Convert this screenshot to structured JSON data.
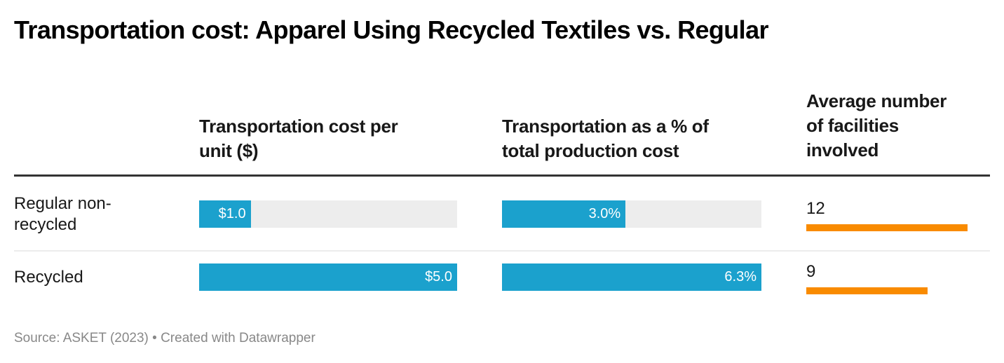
{
  "title": "Transportation cost: Apparel Using Recycled Textiles vs. Regular",
  "footer": "Source: ASKET (2023) • Created with Datawrapper",
  "colors": {
    "bar": "#1ba1cd",
    "track": "#ededed",
    "orange": "#f98b00"
  },
  "columns": [
    {
      "header": [
        "Transportation cost per",
        "unit ($)"
      ],
      "type": "bar",
      "max": 5.0
    },
    {
      "header": [
        "Transportation as a % of",
        "total production cost"
      ],
      "type": "bar",
      "max": 6.3
    },
    {
      "header": [
        "Average number",
        "of facilities",
        "involved"
      ],
      "type": "number-bar",
      "max": 12
    }
  ],
  "rows": [
    {
      "label": [
        "Regular non-",
        "recycled"
      ],
      "cost": 1.0,
      "cost_label": "$1.0",
      "pct": 3.0,
      "pct_label": "3.0%",
      "facilities": 12,
      "facilities_label": "12"
    },
    {
      "label": [
        "Recycled"
      ],
      "cost": 5.0,
      "cost_label": "$5.0",
      "pct": 6.3,
      "pct_label": "6.3%",
      "facilities": 9,
      "facilities_label": "9"
    }
  ],
  "chart_data": {
    "type": "table",
    "title": "Transportation cost: Apparel Using Recycled Textiles vs. Regular",
    "categories": [
      "Regular non-recycled",
      "Recycled"
    ],
    "series": [
      {
        "name": "Transportation cost per unit ($)",
        "values": [
          1.0,
          5.0
        ]
      },
      {
        "name": "Transportation as a % of total production cost",
        "values": [
          3.0,
          6.3
        ]
      },
      {
        "name": "Average number of facilities involved",
        "values": [
          12,
          9
        ]
      }
    ],
    "source": "Source: ASKET (2023) • Created with Datawrapper"
  }
}
